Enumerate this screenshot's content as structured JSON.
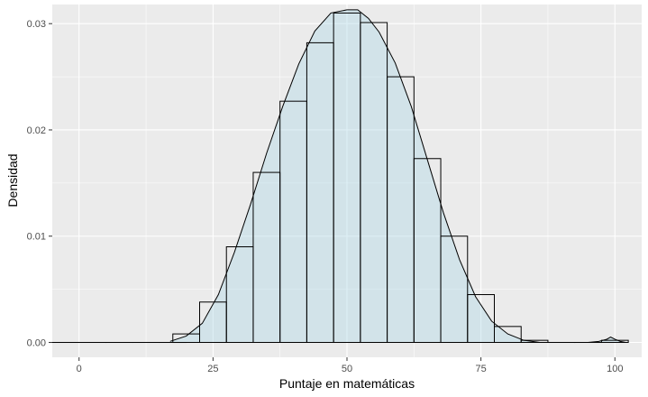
{
  "chart_data": {
    "type": "bar",
    "subtype": "histogram-with-density",
    "xlabel": "Puntaje en matemáticas",
    "ylabel": "Densidad",
    "xlim": [
      -5,
      105
    ],
    "ylim": [
      -0.0014,
      0.0318
    ],
    "x_ticks": [
      0,
      25,
      50,
      75,
      100
    ],
    "x_tick_labels": [
      "0",
      "25",
      "50",
      "75",
      "100"
    ],
    "y_ticks": [
      0,
      0.01,
      0.02,
      0.03
    ],
    "y_tick_labels": [
      "0.00",
      "0.01",
      "0.02",
      "0.03"
    ],
    "grid": true,
    "bin_width": 5,
    "bins": [
      {
        "x": -2.5,
        "value": 0
      },
      {
        "x": 2.5,
        "value": 0
      },
      {
        "x": 7.5,
        "value": 0
      },
      {
        "x": 12.5,
        "value": 0
      },
      {
        "x": 17.5,
        "value": 0
      },
      {
        "x": 20,
        "value": 0.0008
      },
      {
        "x": 25,
        "value": 0.0038
      },
      {
        "x": 30,
        "value": 0.009
      },
      {
        "x": 35,
        "value": 0.016
      },
      {
        "x": 40,
        "value": 0.0227
      },
      {
        "x": 45,
        "value": 0.0282
      },
      {
        "x": 50,
        "value": 0.031
      },
      {
        "x": 55,
        "value": 0.0301
      },
      {
        "x": 60,
        "value": 0.025
      },
      {
        "x": 65,
        "value": 0.0173
      },
      {
        "x": 70,
        "value": 0.01
      },
      {
        "x": 75,
        "value": 0.0045
      },
      {
        "x": 80,
        "value": 0.0015
      },
      {
        "x": 85,
        "value": 0.0002
      },
      {
        "x": 90,
        "value": 0
      },
      {
        "x": 95,
        "value": 0
      },
      {
        "x": 100,
        "value": 0.0002
      }
    ],
    "density": {
      "x": [
        17,
        20,
        23,
        26,
        29,
        32,
        35,
        38,
        41,
        44,
        47,
        50,
        52,
        54,
        56,
        59,
        62,
        65,
        68,
        71,
        74,
        77,
        80,
        83,
        86,
        89,
        92,
        95,
        97,
        98.5,
        99.2,
        100,
        101,
        102
      ],
      "y": [
        0.0001,
        0.0006,
        0.0018,
        0.0045,
        0.0085,
        0.013,
        0.0178,
        0.0222,
        0.0262,
        0.0293,
        0.031,
        0.0313,
        0.0313,
        0.0305,
        0.0292,
        0.0263,
        0.0222,
        0.0172,
        0.0122,
        0.0078,
        0.0043,
        0.002,
        0.0008,
        0.0002,
        0,
        0,
        0,
        0,
        0.0001,
        0.0003,
        0.0005,
        0.0003,
        0.0001,
        0
      ]
    },
    "colors": {
      "panel_bg": "#ebebeb",
      "grid_major": "#ffffff",
      "bar_fill": "none",
      "bar_stroke": "#000000",
      "density_fill": "#add8e6",
      "density_fill_opacity": 0.4,
      "density_stroke": "#000000"
    }
  }
}
